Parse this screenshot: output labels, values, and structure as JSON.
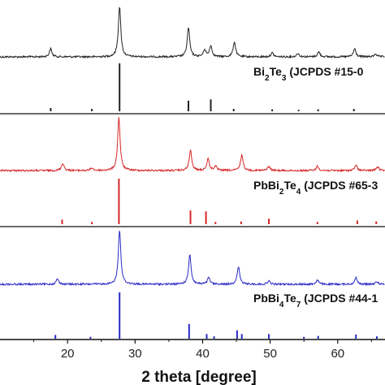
{
  "chart_data": {
    "type": "line",
    "xlabel": "2 theta [degree]",
    "ylabel": "",
    "xlim": [
      10,
      67
    ],
    "x_ticks": [
      20,
      30,
      40,
      50,
      60
    ],
    "grid": false,
    "panels": [
      {
        "label_parts": [
          {
            "t": "Bi",
            "sub": false
          },
          {
            "t": "2",
            "sub": true
          },
          {
            "t": "Te",
            "sub": false
          },
          {
            "t": "3",
            "sub": true
          },
          {
            "t": " (JCPDS #15-0",
            "sub": false
          }
        ],
        "color": "#222222",
        "pattern_peaks": [
          {
            "x": 17.5,
            "h": 0.16
          },
          {
            "x": 27.7,
            "h": 1.0
          },
          {
            "x": 37.9,
            "h": 0.58
          },
          {
            "x": 40.3,
            "h": 0.14
          },
          {
            "x": 41.2,
            "h": 0.22
          },
          {
            "x": 44.7,
            "h": 0.3
          },
          {
            "x": 50.3,
            "h": 0.08
          },
          {
            "x": 54.1,
            "h": 0.07
          },
          {
            "x": 57.2,
            "h": 0.1
          },
          {
            "x": 62.5,
            "h": 0.16
          },
          {
            "x": 65.6,
            "h": 0.06
          }
        ],
        "reference_lines": [
          {
            "x": 8.1,
            "h": 0.1
          },
          {
            "x": 17.5,
            "h": 0.07
          },
          {
            "x": 23.6,
            "h": 0.05
          },
          {
            "x": 27.7,
            "h": 1.0
          },
          {
            "x": 37.9,
            "h": 0.22
          },
          {
            "x": 41.2,
            "h": 0.25
          },
          {
            "x": 44.6,
            "h": 0.05
          },
          {
            "x": 50.3,
            "h": 0.04
          },
          {
            "x": 54.2,
            "h": 0.03
          },
          {
            "x": 57.1,
            "h": 0.04
          },
          {
            "x": 62.4,
            "h": 0.05
          }
        ]
      },
      {
        "label_parts": [
          {
            "t": "PbBi",
            "sub": false
          },
          {
            "t": "2",
            "sub": true
          },
          {
            "t": "Te",
            "sub": false
          },
          {
            "t": "4",
            "sub": true
          },
          {
            "t": " (JCPDS #65-3",
            "sub": false
          }
        ],
        "color": "#d62728",
        "pattern_peaks": [
          {
            "x": 19.3,
            "h": 0.14
          },
          {
            "x": 23.6,
            "h": 0.05
          },
          {
            "x": 27.6,
            "h": 1.0
          },
          {
            "x": 38.2,
            "h": 0.38
          },
          {
            "x": 40.8,
            "h": 0.22
          },
          {
            "x": 41.9,
            "h": 0.08
          },
          {
            "x": 45.8,
            "h": 0.3
          },
          {
            "x": 49.8,
            "h": 0.08
          },
          {
            "x": 57.0,
            "h": 0.08
          },
          {
            "x": 62.7,
            "h": 0.1
          },
          {
            "x": 65.9,
            "h": 0.07
          }
        ],
        "reference_lines": [
          {
            "x": 19.2,
            "h": 0.1
          },
          {
            "x": 23.6,
            "h": 0.05
          },
          {
            "x": 27.6,
            "h": 1.0
          },
          {
            "x": 38.2,
            "h": 0.3
          },
          {
            "x": 40.5,
            "h": 0.28
          },
          {
            "x": 41.9,
            "h": 0.05
          },
          {
            "x": 45.7,
            "h": 0.06
          },
          {
            "x": 49.8,
            "h": 0.12
          },
          {
            "x": 57.0,
            "h": 0.05
          },
          {
            "x": 62.9,
            "h": 0.08
          },
          {
            "x": 65.7,
            "h": 0.06
          }
        ]
      },
      {
        "label_parts": [
          {
            "t": "PbBi",
            "sub": false
          },
          {
            "t": "4",
            "sub": true
          },
          {
            "t": "Te",
            "sub": false
          },
          {
            "t": "7",
            "sub": true
          },
          {
            "t": " (JCPDS #44-1",
            "sub": false
          }
        ],
        "color": "#2a2ac8",
        "pattern_peaks": [
          {
            "x": 18.5,
            "h": 0.1
          },
          {
            "x": 27.7,
            "h": 1.0
          },
          {
            "x": 38.1,
            "h": 0.55
          },
          {
            "x": 40.9,
            "h": 0.12
          },
          {
            "x": 45.3,
            "h": 0.32
          },
          {
            "x": 49.8,
            "h": 0.06
          },
          {
            "x": 57.0,
            "h": 0.08
          },
          {
            "x": 62.7,
            "h": 0.12
          },
          {
            "x": 65.8,
            "h": 0.05
          }
        ],
        "reference_lines": [
          {
            "x": 8.5,
            "h": 0.08
          },
          {
            "x": 18.2,
            "h": 0.08
          },
          {
            "x": 23.4,
            "h": 0.04
          },
          {
            "x": 27.7,
            "h": 1.0
          },
          {
            "x": 38.0,
            "h": 0.32
          },
          {
            "x": 40.6,
            "h": 0.1
          },
          {
            "x": 41.7,
            "h": 0.05
          },
          {
            "x": 45.1,
            "h": 0.18
          },
          {
            "x": 45.8,
            "h": 0.1
          },
          {
            "x": 49.8,
            "h": 0.1
          },
          {
            "x": 55.0,
            "h": 0.04
          },
          {
            "x": 57.1,
            "h": 0.06
          },
          {
            "x": 62.7,
            "h": 0.09
          },
          {
            "x": 65.8,
            "h": 0.05
          }
        ]
      }
    ]
  }
}
